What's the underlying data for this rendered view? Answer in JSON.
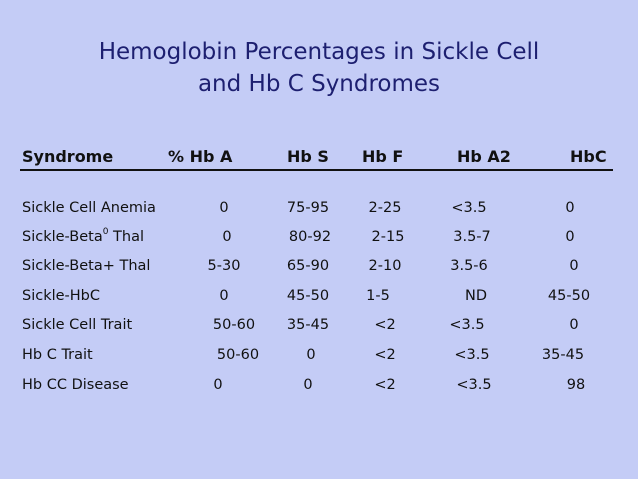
{
  "title": {
    "line1": "Hemoglobin Percentages in Sickle Cell",
    "line2": "and Hb C Syndromes"
  },
  "headers": {
    "syndrome": "Syndrome",
    "hba": "% Hb A",
    "hbs": "Hb S",
    "hbf": "Hb F",
    "hba2": "Hb A2",
    "hbc": "HbC"
  },
  "rows": [
    {
      "syndrome": "Sickle Cell Anemia",
      "sup": "",
      "syndrome_tail": "",
      "hba": "0",
      "hbs": "75-95",
      "hbf": "2-25",
      "hba2": "<3.5",
      "hbc": "0"
    },
    {
      "syndrome": "Sickle-Beta",
      "sup": "0",
      "syndrome_tail": " Thal",
      "hba": "0",
      "hbs": "80-92",
      "hbf": "2-15",
      "hba2": "3.5-7",
      "hbc": "0"
    },
    {
      "syndrome": "Sickle-Beta+ Thal",
      "sup": "",
      "syndrome_tail": "",
      "hba": "5-30",
      "hbs": "65-90",
      "hbf": "2-10",
      "hba2": "3.5-6",
      "hbc": "0"
    },
    {
      "syndrome": "Sickle-HbC",
      "sup": "",
      "syndrome_tail": "",
      "hba": "0",
      "hbs": "45-50",
      "hbf": "1-5",
      "hba2": "ND",
      "hbc": "45-50"
    },
    {
      "syndrome": "Sickle Cell Trait",
      "sup": "",
      "syndrome_tail": "",
      "hba": "50-60",
      "hbs": "35-45",
      "hbf": "<2",
      "hba2": "<3.5",
      "hbc": "0"
    },
    {
      "syndrome": "Hb C Trait",
      "sup": "",
      "syndrome_tail": "",
      "hba": "50-60",
      "hbs": "0",
      "hbf": "<2",
      "hba2": "<3.5",
      "hbc": "35-45"
    },
    {
      "syndrome": "Hb CC Disease",
      "sup": "",
      "syndrome_tail": "",
      "hba": "0",
      "hbs": "0",
      "hbf": "<2",
      "hba2": "<3.5",
      "hbc": "98"
    }
  ]
}
